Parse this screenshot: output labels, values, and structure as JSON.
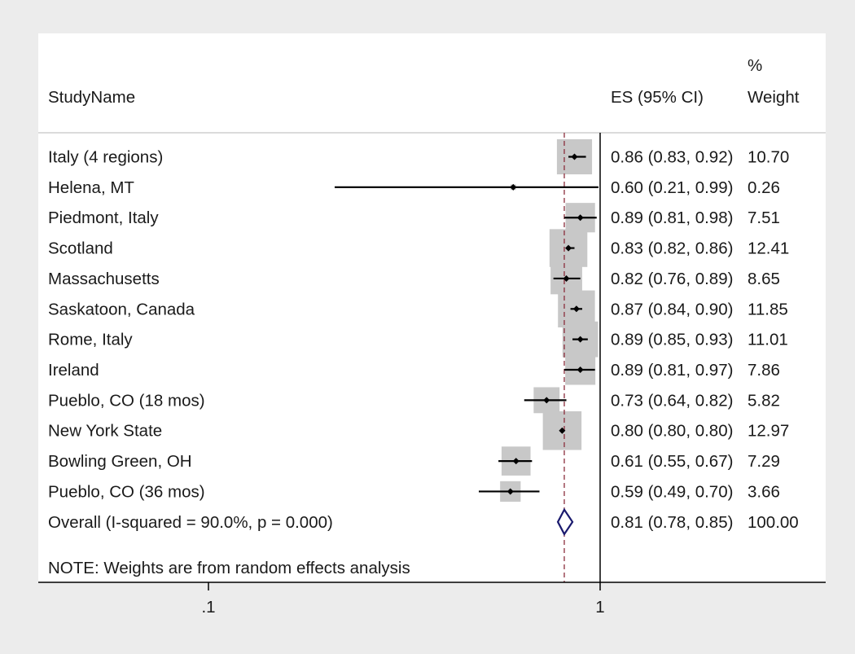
{
  "chart_data": {
    "type": "forest",
    "headers": {
      "study": "StudyName",
      "es": "ES (95% CI)",
      "weight_line1": "%",
      "weight_line2": "Weight"
    },
    "studies": [
      {
        "name": "Italy (4 regions)",
        "es": 0.86,
        "lo": 0.83,
        "hi": 0.92,
        "es_text": "0.86 (0.83, 0.92)",
        "weight": 10.7,
        "weight_text": "10.70"
      },
      {
        "name": "Helena, MT",
        "es": 0.6,
        "lo": 0.21,
        "hi": 0.99,
        "es_text": "0.60 (0.21, 0.99)",
        "weight": 0.26,
        "weight_text": "0.26"
      },
      {
        "name": "Piedmont, Italy",
        "es": 0.89,
        "lo": 0.81,
        "hi": 0.98,
        "es_text": "0.89 (0.81, 0.98)",
        "weight": 7.51,
        "weight_text": "7.51"
      },
      {
        "name": "Scotland",
        "es": 0.83,
        "lo": 0.82,
        "hi": 0.86,
        "es_text": "0.83 (0.82, 0.86)",
        "weight": 12.41,
        "weight_text": "12.41"
      },
      {
        "name": "Massachusetts",
        "es": 0.82,
        "lo": 0.76,
        "hi": 0.89,
        "es_text": "0.82 (0.76, 0.89)",
        "weight": 8.65,
        "weight_text": "8.65"
      },
      {
        "name": "Saskatoon, Canada",
        "es": 0.87,
        "lo": 0.84,
        "hi": 0.9,
        "es_text": "0.87 (0.84, 0.90)",
        "weight": 11.85,
        "weight_text": "11.85"
      },
      {
        "name": "Rome, Italy",
        "es": 0.89,
        "lo": 0.85,
        "hi": 0.93,
        "es_text": "0.89 (0.85, 0.93)",
        "weight": 11.01,
        "weight_text": "11.01"
      },
      {
        "name": "Ireland",
        "es": 0.89,
        "lo": 0.81,
        "hi": 0.97,
        "es_text": "0.89 (0.81, 0.97)",
        "weight": 7.86,
        "weight_text": "7.86"
      },
      {
        "name": "Pueblo, CO (18 mos)",
        "es": 0.73,
        "lo": 0.64,
        "hi": 0.82,
        "es_text": "0.73 (0.64, 0.82)",
        "weight": 5.82,
        "weight_text": "5.82"
      },
      {
        "name": "New York State",
        "es": 0.8,
        "lo": 0.8,
        "hi": 0.8,
        "es_text": "0.80 (0.80, 0.80)",
        "weight": 12.97,
        "weight_text": "12.97"
      },
      {
        "name": "Bowling Green, OH",
        "es": 0.61,
        "lo": 0.55,
        "hi": 0.67,
        "es_text": "0.61 (0.55, 0.67)",
        "weight": 7.29,
        "weight_text": "7.29"
      },
      {
        "name": "Pueblo, CO (36 mos)",
        "es": 0.59,
        "lo": 0.49,
        "hi": 0.7,
        "es_text": "0.59 (0.49, 0.70)",
        "weight": 3.66,
        "weight_text": "3.66"
      }
    ],
    "overall": {
      "label": "Overall  (I-squared = 90.0%, p = 0.000)",
      "es": 0.81,
      "lo": 0.78,
      "hi": 0.85,
      "es_text": "0.81 (0.78, 0.85)",
      "weight_text": "100.00"
    },
    "note": "NOTE: Weights are from random effects analysis",
    "x_axis": {
      "scale": "log",
      "ticks": [
        0.1,
        1
      ],
      "tick_labels": [
        ".1",
        "1"
      ]
    },
    "reference_line": 1,
    "colors": {
      "box": "#c8c8c8",
      "ci": "#000000",
      "diamond": "#1a1a6e",
      "overall_line": "#8b2e3c",
      "background": "#ececec",
      "panel": "#ffffff"
    }
  }
}
